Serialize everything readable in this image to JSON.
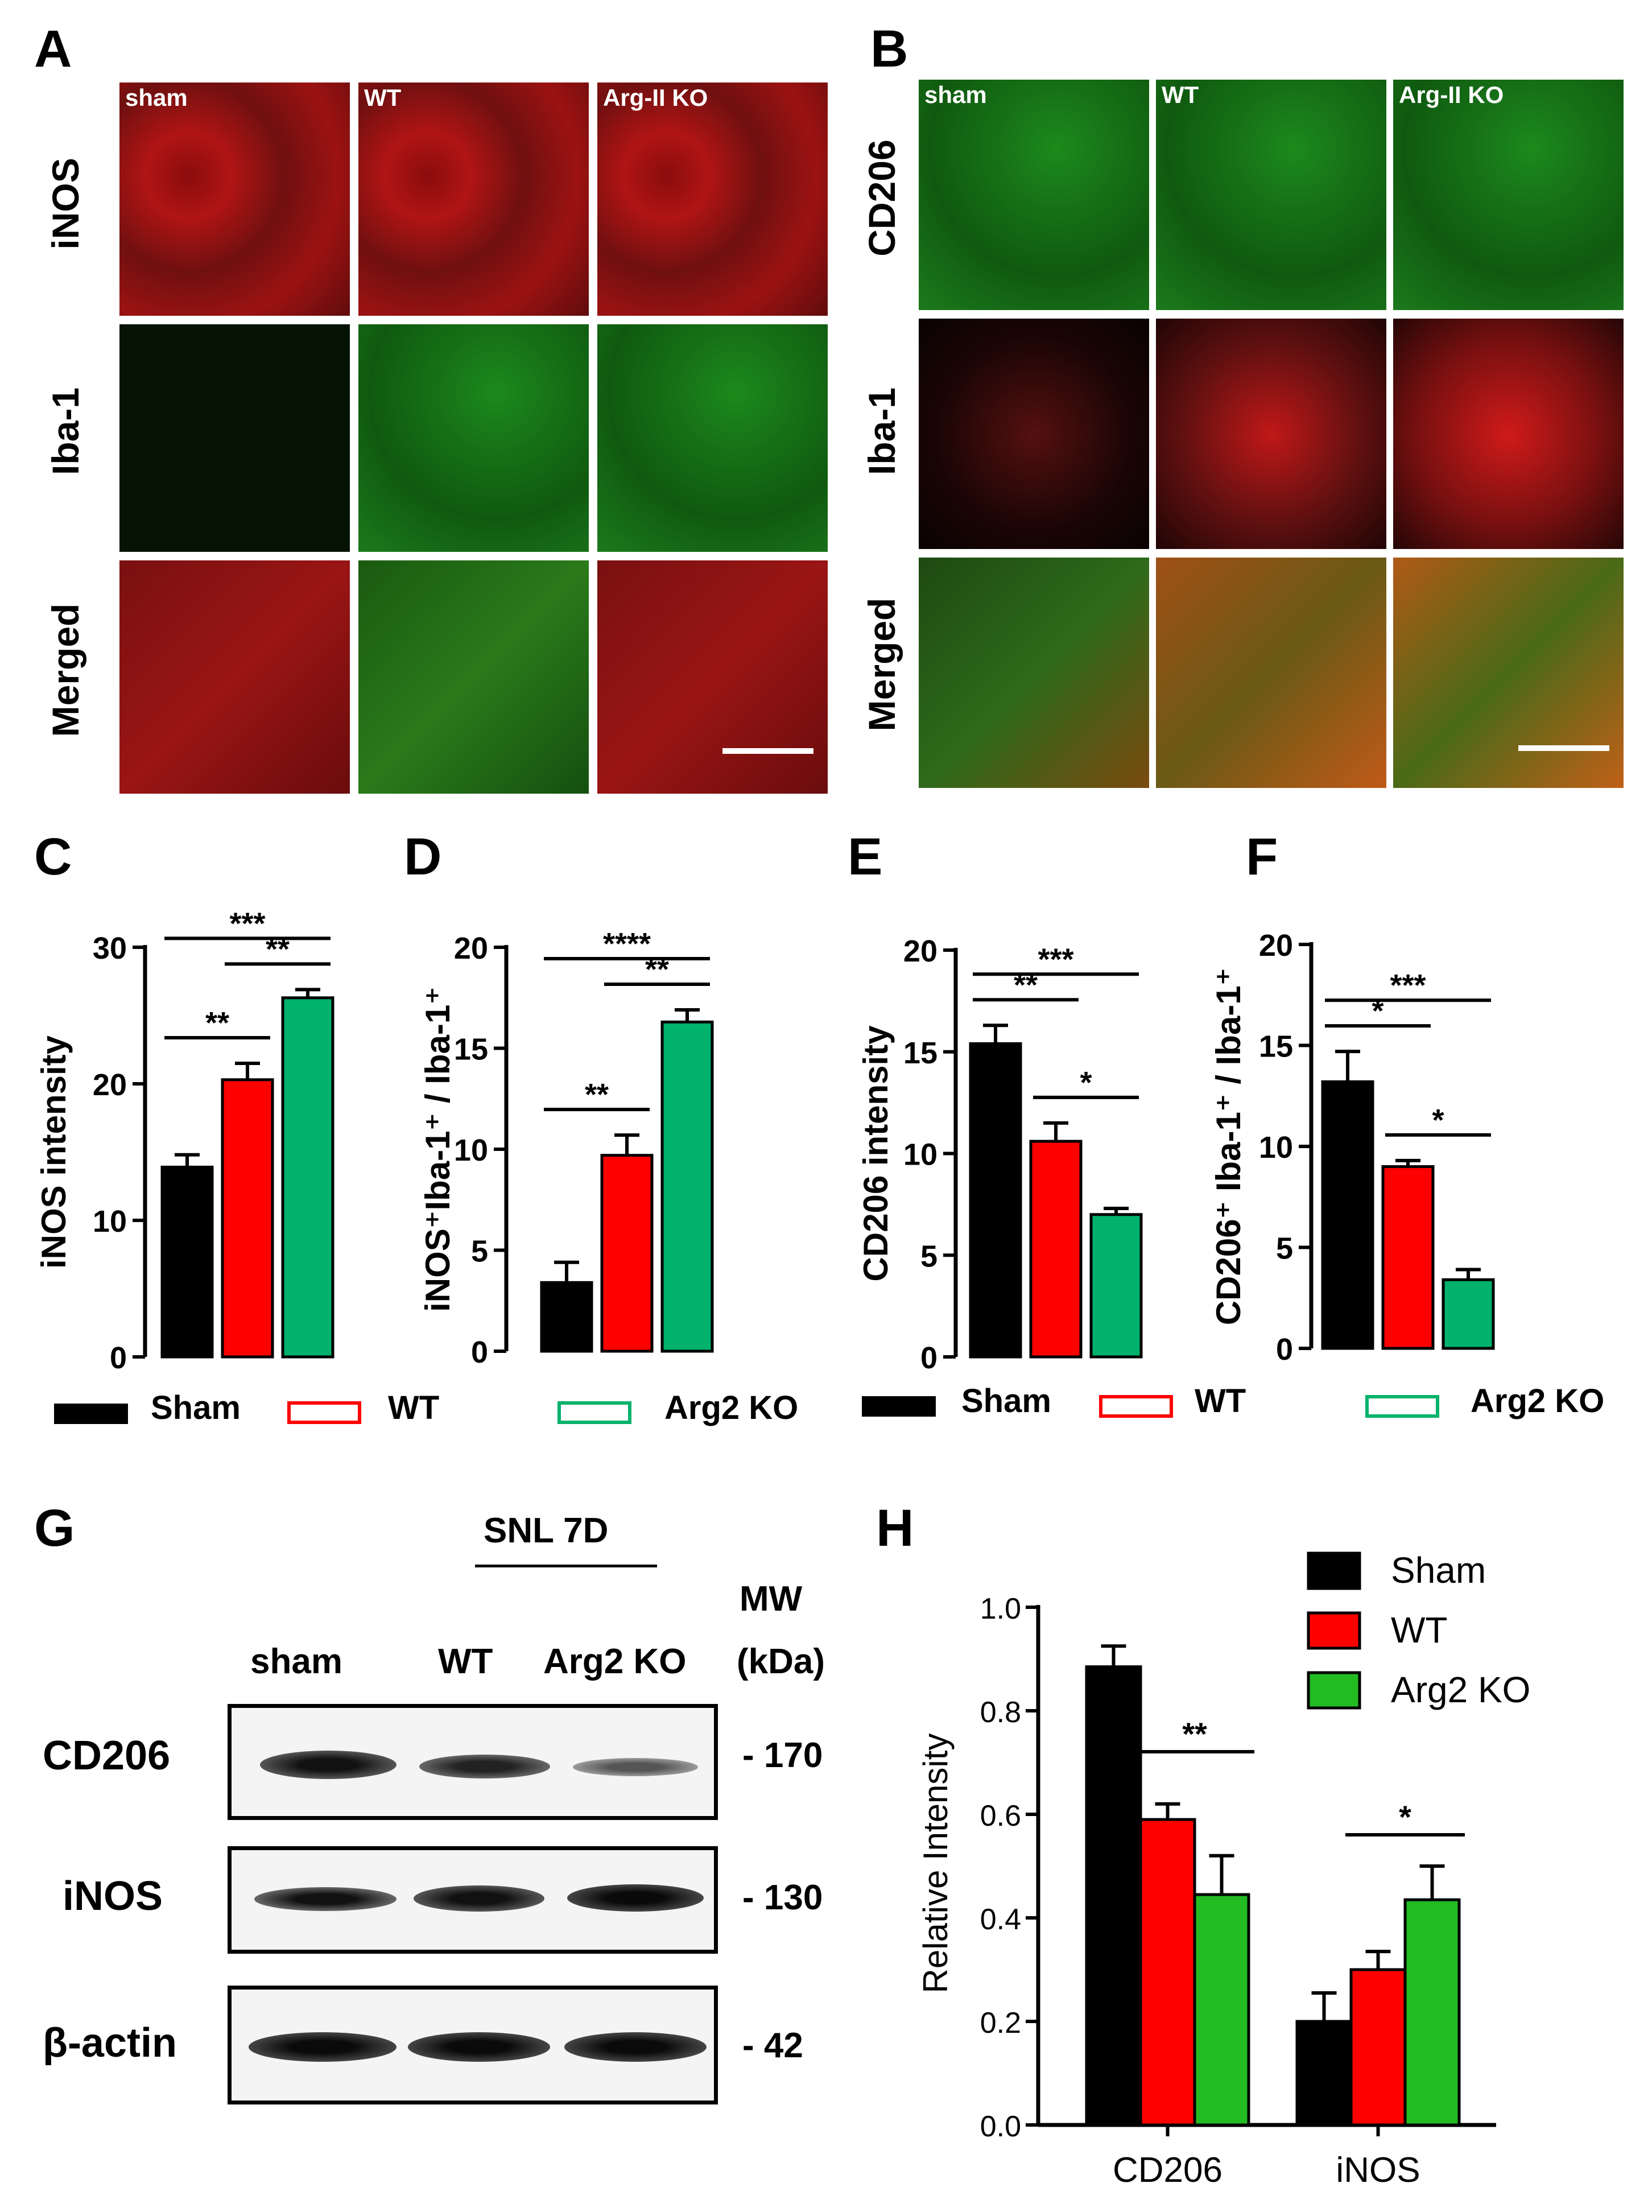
{
  "panels": {
    "A": "A",
    "B": "B",
    "C": "C",
    "D": "D",
    "E": "E",
    "F": "F",
    "G": "G",
    "H": "H"
  },
  "panelA": {
    "columns": [
      "sham",
      "WT",
      "Arg-II KO"
    ],
    "rows": [
      "iNOS",
      "Iba-1",
      "Merged"
    ]
  },
  "panelB": {
    "columns": [
      "sham",
      "WT",
      "Arg-II KO"
    ],
    "rows": [
      "CD206",
      "Iba-1",
      "Merged"
    ]
  },
  "legend_CD": {
    "sham": "Sham",
    "wt": "WT",
    "ko": "Arg2 KO"
  },
  "legend_EF": {
    "sham": "Sham",
    "wt": "WT",
    "ko": "Arg2 KO"
  },
  "colors": {
    "sham": "#000000",
    "wt": "#ff0000",
    "ko_teal": "#00b26b",
    "ko_green": "#22bb22"
  },
  "panelG": {
    "group": "SNL 7D",
    "mw_header": "MW",
    "mw_unit": "(kDa)",
    "lanes": [
      "sham",
      "WT",
      "Arg2 KO"
    ],
    "rows": [
      {
        "name": "CD206",
        "mw": "- 170"
      },
      {
        "name": "iNOS",
        "mw": "- 130"
      },
      {
        "name": "β-actin",
        "mw": "- 42"
      }
    ]
  },
  "chart_data": [
    {
      "panel": "C",
      "type": "bar",
      "categories": [
        "Sham",
        "WT",
        "Arg2 KO"
      ],
      "values": [
        13.9,
        20.3,
        26.3
      ],
      "errors": [
        0.9,
        1.2,
        0.6
      ],
      "ylabel": "iNOS intensity",
      "ylim": [
        0,
        30
      ],
      "yticks": [
        0,
        10,
        20,
        30
      ],
      "sig": [
        {
          "from": 0,
          "to": 1,
          "label": "**"
        },
        {
          "from": 1,
          "to": 2,
          "label": "**"
        },
        {
          "from": 0,
          "to": 2,
          "label": "***"
        }
      ]
    },
    {
      "panel": "D",
      "type": "bar",
      "categories": [
        "Sham",
        "WT",
        "Arg2 KO"
      ],
      "values": [
        3.4,
        9.7,
        16.3
      ],
      "errors": [
        1.0,
        1.0,
        0.6
      ],
      "ylabel": "iNOS⁺Iba-1⁺ / Iba-1⁺",
      "ylim": [
        0,
        20
      ],
      "yticks": [
        0,
        5,
        10,
        15,
        20
      ],
      "sig": [
        {
          "from": 0,
          "to": 1,
          "label": "**"
        },
        {
          "from": 1,
          "to": 2,
          "label": "**"
        },
        {
          "from": 0,
          "to": 2,
          "label": "****"
        }
      ]
    },
    {
      "panel": "E",
      "type": "bar",
      "categories": [
        "Sham",
        "WT",
        "Arg2 KO"
      ],
      "values": [
        15.4,
        10.6,
        7.0
      ],
      "errors": [
        0.9,
        0.9,
        0.3
      ],
      "ylabel": "CD206 intensity",
      "ylim": [
        0,
        20
      ],
      "yticks": [
        0,
        5,
        10,
        15,
        20
      ],
      "sig": [
        {
          "from": 0,
          "to": 1,
          "label": "**"
        },
        {
          "from": 1,
          "to": 2,
          "label": "*"
        },
        {
          "from": 0,
          "to": 2,
          "label": "***"
        }
      ]
    },
    {
      "panel": "F",
      "type": "bar",
      "categories": [
        "Sham",
        "WT",
        "Arg2 KO"
      ],
      "values": [
        13.2,
        9.0,
        3.4
      ],
      "errors": [
        1.5,
        0.3,
        0.5
      ],
      "ylabel": "CD206⁺ Iba-1⁺ / Iba-1⁺",
      "ylim": [
        0,
        20
      ],
      "yticks": [
        0,
        5,
        10,
        15,
        20
      ],
      "sig": [
        {
          "from": 0,
          "to": 1,
          "label": "*"
        },
        {
          "from": 1,
          "to": 2,
          "label": "*"
        },
        {
          "from": 0,
          "to": 2,
          "label": "***"
        }
      ]
    },
    {
      "panel": "H",
      "type": "bar",
      "categories": [
        "CD206",
        "iNOS"
      ],
      "series": [
        {
          "name": "Sham",
          "values": [
            0.885,
            0.2
          ],
          "errors": [
            0.04,
            0.055
          ]
        },
        {
          "name": "WT",
          "values": [
            0.59,
            0.3
          ],
          "errors": [
            0.03,
            0.035
          ]
        },
        {
          "name": "Arg2 KO",
          "values": [
            0.445,
            0.435
          ],
          "errors": [
            0.075,
            0.065
          ]
        }
      ],
      "ylabel": "Relative Intensity",
      "ylim": [
        0,
        1.0
      ],
      "yticks": [
        "0.0",
        "0.2",
        "0.4",
        "0.6",
        "0.8",
        "1.0"
      ],
      "sig": [
        {
          "category": 0,
          "label": "**"
        },
        {
          "category": 1,
          "label": "*"
        }
      ]
    }
  ]
}
